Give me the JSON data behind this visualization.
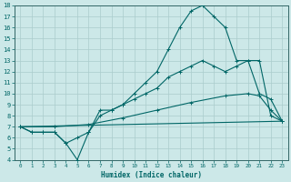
{
  "xlabel": "Humidex (Indice chaleur)",
  "bg_color": "#cce8e8",
  "grid_color": "#aacccc",
  "line_color": "#006666",
  "spine_color": "#336666",
  "xlim": [
    -0.5,
    23.5
  ],
  "ylim": [
    4,
    18
  ],
  "xticks": [
    0,
    1,
    2,
    3,
    4,
    5,
    6,
    7,
    8,
    9,
    10,
    11,
    12,
    13,
    14,
    15,
    16,
    17,
    18,
    19,
    20,
    21,
    22,
    23
  ],
  "yticks": [
    4,
    5,
    6,
    7,
    8,
    9,
    10,
    11,
    12,
    13,
    14,
    15,
    16,
    17,
    18
  ],
  "lines": [
    {
      "x": [
        0,
        1,
        2,
        3,
        4,
        5,
        6,
        7,
        8,
        9,
        10,
        11,
        12,
        13,
        14,
        15,
        16,
        17,
        18,
        19,
        20,
        21,
        22,
        23
      ],
      "y": [
        7,
        6.5,
        6.5,
        6.5,
        5.5,
        4,
        6.5,
        8.5,
        8.5,
        9,
        10,
        11,
        12,
        14,
        16,
        17.5,
        18,
        17,
        16,
        13,
        13,
        10,
        9.5,
        7.5
      ],
      "marker": "+"
    },
    {
      "x": [
        0,
        1,
        2,
        3,
        4,
        5,
        6,
        7,
        8,
        9,
        10,
        11,
        12,
        13,
        14,
        15,
        16,
        17,
        18,
        19,
        20,
        21,
        22,
        23
      ],
      "y": [
        7,
        6.5,
        6.5,
        6.5,
        5.5,
        6,
        6.5,
        8,
        8.5,
        9,
        9.5,
        10,
        10.5,
        11.5,
        12,
        12.5,
        13,
        12.5,
        12,
        12.5,
        13,
        13,
        8,
        7.5
      ],
      "marker": "+"
    },
    {
      "x": [
        0,
        3,
        6,
        9,
        12,
        15,
        18,
        20,
        21,
        22,
        23
      ],
      "y": [
        7,
        7,
        7.2,
        7.8,
        8.5,
        9.2,
        9.8,
        10,
        9.8,
        8.5,
        7.5
      ],
      "marker": "+"
    },
    {
      "x": [
        0,
        23
      ],
      "y": [
        7,
        7.5
      ],
      "marker": null
    }
  ]
}
